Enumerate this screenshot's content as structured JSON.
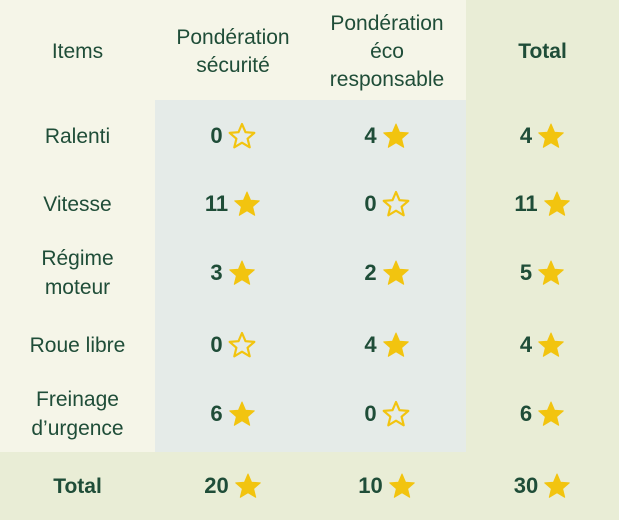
{
  "columns": {
    "items": "Items",
    "securite": "Pondération sécurité",
    "eco": "Pondération éco responsable",
    "total": "Total"
  },
  "rows": [
    {
      "label": "Ralenti",
      "securite": "0",
      "securite_star": "empty",
      "eco": "4",
      "eco_star": "filled",
      "total": "4",
      "total_star": "filled"
    },
    {
      "label": "Vitesse",
      "securite": "11",
      "securite_star": "filled",
      "eco": "0",
      "eco_star": "empty",
      "total": "11",
      "total_star": "filled"
    },
    {
      "label": "Régime moteur",
      "securite": "3",
      "securite_star": "filled",
      "eco": "2",
      "eco_star": "filled",
      "total": "5",
      "total_star": "filled"
    },
    {
      "label": "Roue libre",
      "securite": "0",
      "securite_star": "empty",
      "eco": "4",
      "eco_star": "filled",
      "total": "4",
      "total_star": "filled"
    },
    {
      "label": "Freinage d’urgence",
      "securite": "6",
      "securite_star": "filled",
      "eco": "0",
      "eco_star": "empty",
      "total": "6",
      "total_star": "filled"
    }
  ],
  "footer": {
    "label": "Total",
    "securite": "20",
    "securite_star": "filled",
    "eco": "10",
    "eco_star": "filled",
    "total": "30",
    "total_star": "filled"
  },
  "colors": {
    "text": "#1f4d38",
    "star": "#f2c40f",
    "background": "#f5f5e8",
    "highlight": "#e9edd6",
    "middle_panel": "#e5ebe8"
  },
  "icons": {
    "filled": "star-filled-icon",
    "empty": "star-outline-icon"
  }
}
